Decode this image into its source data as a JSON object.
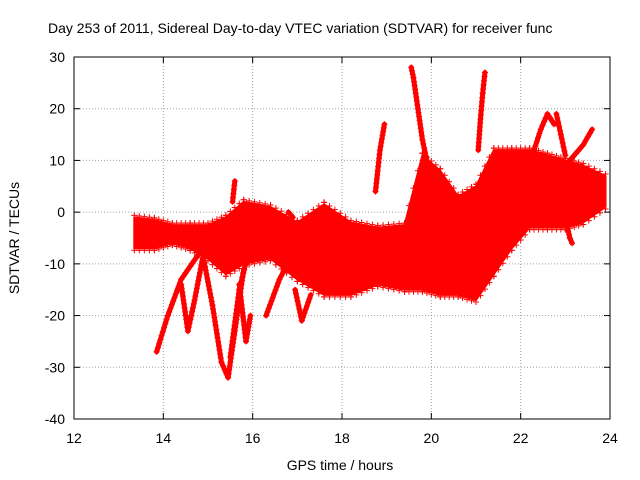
{
  "chart_data": {
    "type": "scatter",
    "title": "Day 253 of 2011, Sidereal Day-to-day VTEC variation (SDTVAR) for receiver func",
    "xlabel": "GPS time / hours",
    "ylabel": "SDTVAR / TECUs",
    "xlim": [
      12,
      24
    ],
    "ylim": [
      -40,
      30
    ],
    "xticks": [
      "12",
      "14",
      "16",
      "18",
      "20",
      "22",
      "24"
    ],
    "yticks": [
      "30",
      "20",
      "10",
      "0",
      "-10",
      "-20",
      "-30",
      "-40"
    ],
    "xtick_values": [
      12,
      14,
      16,
      18,
      20,
      22,
      24
    ],
    "ytick_values": [
      30,
      20,
      10,
      0,
      -10,
      -20,
      -30,
      -40
    ],
    "grid": true,
    "marker": "+",
    "series_color": "#ff0000",
    "envelope": {
      "x": [
        13.35,
        13.8,
        14.2,
        14.6,
        15.0,
        15.4,
        15.8,
        16.4,
        17.0,
        17.6,
        18.2,
        18.8,
        19.4,
        19.8,
        20.2,
        20.6,
        21.0,
        21.4,
        21.8,
        22.2,
        22.6,
        23.0,
        23.4,
        23.9
      ],
      "upper": [
        -1,
        -1.5,
        -2.5,
        -2.5,
        -2.5,
        -1,
        2,
        1,
        -2,
        1.5,
        -2,
        -3,
        -2.5,
        11,
        8,
        3,
        5,
        12,
        12,
        12,
        11,
        10,
        9,
        7
      ],
      "lower": [
        -7,
        -7,
        -6,
        -7,
        -9,
        -12,
        -10,
        -9,
        -13,
        -16,
        -16,
        -14,
        -15,
        -15,
        -16,
        -16,
        -17,
        -12,
        -7,
        -3,
        -3,
        -3,
        -2,
        1
      ]
    },
    "tracks": [
      {
        "x": [
          13.85,
          14.1,
          14.4,
          14.8,
          15.1
        ],
        "y": [
          -27,
          -20,
          -13,
          -8,
          -5
        ]
      },
      {
        "x": [
          14.4,
          14.55,
          14.7,
          14.9
        ],
        "y": [
          -14,
          -23,
          -17,
          -8
        ]
      },
      {
        "x": [
          14.9,
          15.1,
          15.3,
          15.45,
          15.6,
          15.8
        ],
        "y": [
          -9,
          -18,
          -29,
          -32,
          -23,
          -11
        ]
      },
      {
        "x": [
          15.5,
          15.7,
          15.9,
          16.1
        ],
        "y": [
          -28,
          -15,
          -8,
          -4
        ]
      },
      {
        "x": [
          15.7,
          15.85,
          15.95
        ],
        "y": [
          -14,
          -25,
          -20
        ]
      },
      {
        "x": [
          16.3,
          16.6,
          16.9
        ],
        "y": [
          -20,
          -13,
          -8
        ]
      },
      {
        "x": [
          16.95,
          17.1,
          17.3
        ],
        "y": [
          -15,
          -21,
          -16
        ]
      },
      {
        "x": [
          18.75,
          18.85,
          18.95
        ],
        "y": [
          4,
          12,
          17
        ]
      },
      {
        "x": [
          19.55,
          19.6,
          19.7,
          19.8,
          19.9
        ],
        "y": [
          28,
          26,
          20,
          14,
          10
        ]
      },
      {
        "x": [
          21.05,
          21.1,
          21.15,
          21.2
        ],
        "y": [
          12,
          18,
          23,
          27
        ]
      },
      {
        "x": [
          22.3,
          22.45,
          22.6,
          22.75
        ],
        "y": [
          12,
          16,
          19,
          17
        ]
      },
      {
        "x": [
          22.8,
          22.9,
          23.0
        ],
        "y": [
          19,
          15,
          11
        ]
      },
      {
        "x": [
          23.1,
          23.4,
          23.6
        ],
        "y": [
          10,
          13,
          16
        ]
      },
      {
        "x": [
          23.05,
          23.1,
          23.15
        ],
        "y": [
          -3,
          -5,
          -6
        ]
      },
      {
        "x": [
          15.55,
          15.6
        ],
        "y": [
          2,
          6
        ]
      },
      {
        "x": [
          16.8,
          16.9
        ],
        "y": [
          0,
          -1
        ]
      }
    ]
  }
}
